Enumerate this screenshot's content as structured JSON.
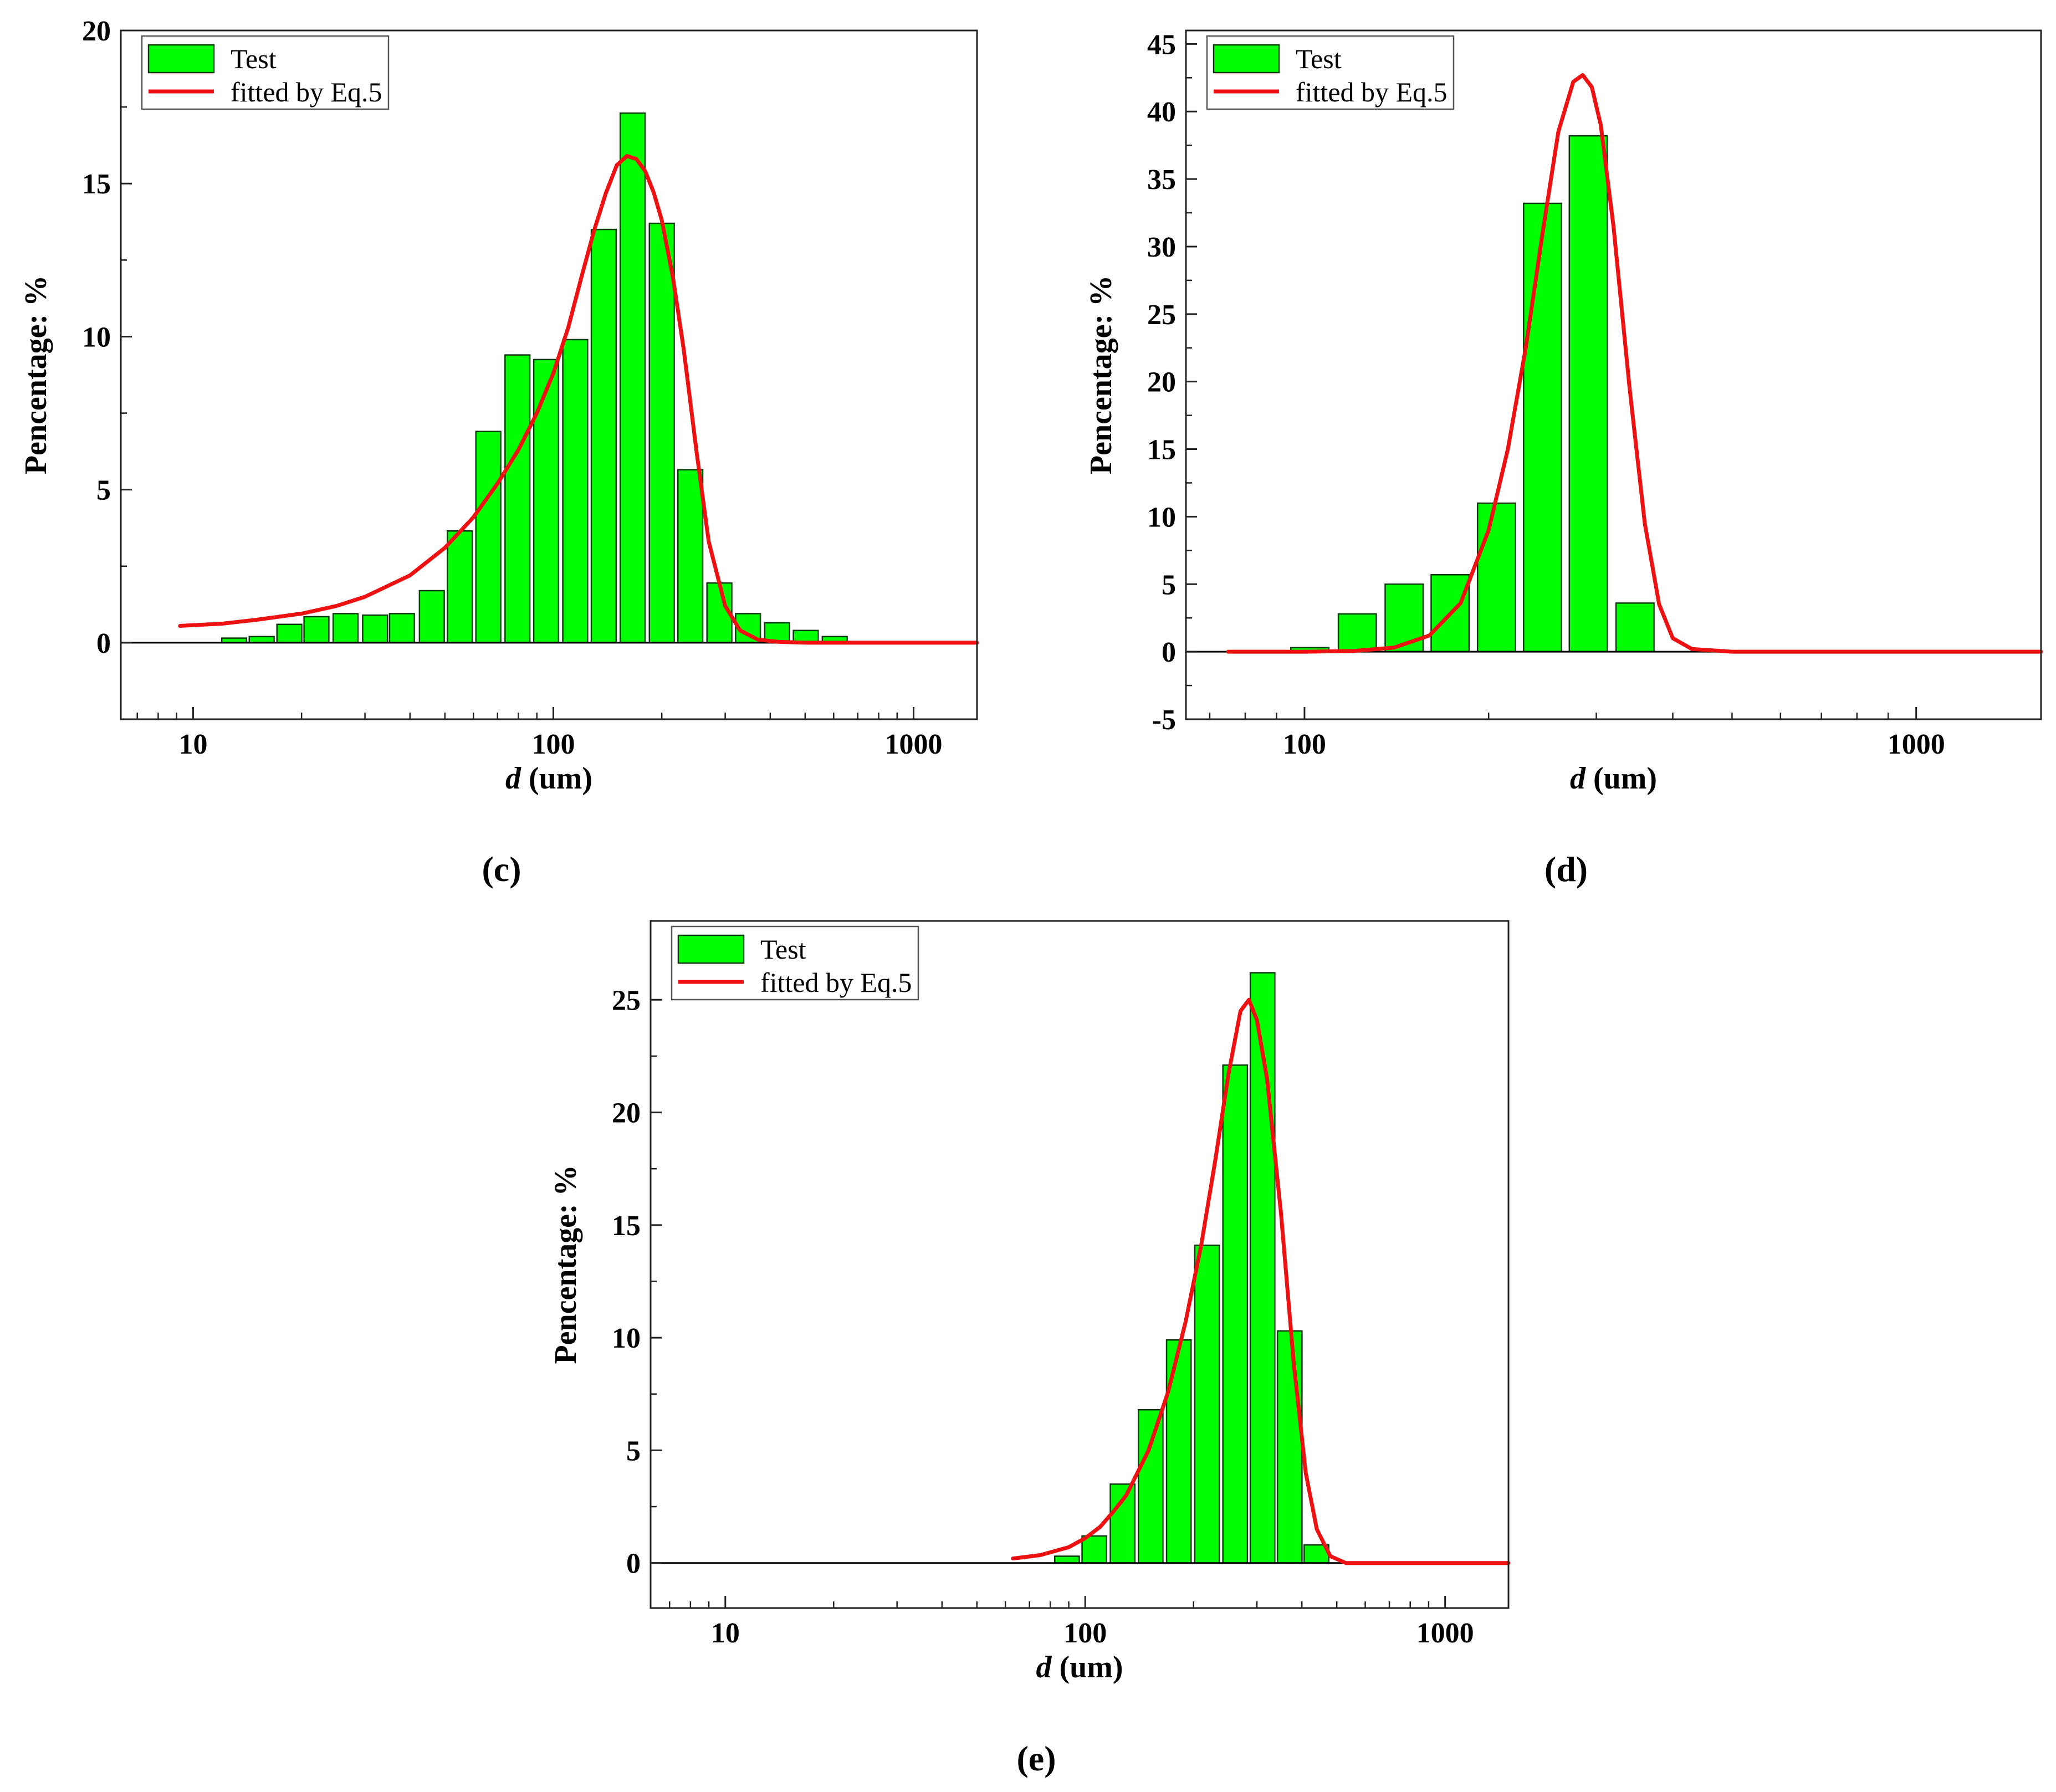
{
  "chart_data": [
    {
      "type": "bar",
      "panel_label": "(c)",
      "xlabel_var": "d",
      "xlabel_unit": " (um)",
      "ylabel": "Pencentage:   %",
      "xscale": "log",
      "xlim": [
        6.3,
        1500
      ],
      "ylim": [
        -2.5,
        20
      ],
      "yticks": [
        0,
        5,
        10,
        15,
        20
      ],
      "xticks": [
        10,
        100,
        1000
      ],
      "legend": {
        "position": "top-left",
        "bar_label": "Test",
        "line_label": "fitted by Eq.5"
      },
      "bar_ratio": 1.205,
      "bar_width_frac": 0.85,
      "bars": [
        {
          "x": 13.0,
          "y": 0.15
        },
        {
          "x": 15.5,
          "y": 0.2
        },
        {
          "x": 18.5,
          "y": 0.6
        },
        {
          "x": 22.0,
          "y": 0.85
        },
        {
          "x": 26.5,
          "y": 0.95
        },
        {
          "x": 32.0,
          "y": 0.9
        },
        {
          "x": 38.0,
          "y": 0.95
        },
        {
          "x": 46.0,
          "y": 1.7
        },
        {
          "x": 55.0,
          "y": 3.65
        },
        {
          "x": 66.0,
          "y": 6.9
        },
        {
          "x": 79.5,
          "y": 9.4
        },
        {
          "x": 95.5,
          "y": 9.25
        },
        {
          "x": 115.0,
          "y": 9.9
        },
        {
          "x": 138.0,
          "y": 13.5
        },
        {
          "x": 166.0,
          "y": 17.3
        },
        {
          "x": 200.0,
          "y": 13.7
        },
        {
          "x": 240.0,
          "y": 5.65
        },
        {
          "x": 289.0,
          "y": 1.95
        },
        {
          "x": 347.0,
          "y": 0.95
        },
        {
          "x": 418.0,
          "y": 0.65
        },
        {
          "x": 502.0,
          "y": 0.4
        },
        {
          "x": 604.0,
          "y": 0.2
        }
      ],
      "fit": {
        "x": [
          9.2,
          12,
          15,
          20,
          25,
          30,
          40,
          50,
          60,
          70,
          80,
          90,
          100,
          110,
          120,
          130,
          140,
          150,
          160,
          170,
          180,
          190,
          200,
          215,
          230,
          250,
          270,
          300,
          330,
          370,
          420,
          500,
          700,
          1000,
          1500
        ],
        "y": [
          0.55,
          0.62,
          0.75,
          0.95,
          1.2,
          1.5,
          2.2,
          3.1,
          4.1,
          5.2,
          6.3,
          7.5,
          8.8,
          10.3,
          12.0,
          13.5,
          14.7,
          15.6,
          15.9,
          15.8,
          15.4,
          14.7,
          13.8,
          11.9,
          9.6,
          6.2,
          3.3,
          1.2,
          0.4,
          0.1,
          0.03,
          0.0,
          0.0,
          0.0,
          0.0
        ]
      }
    },
    {
      "type": "bar",
      "panel_label": "(d)",
      "xlabel_var": "d",
      "xlabel_unit": " (um)",
      "ylabel": "Pencentage:   %",
      "xscale": "log",
      "xlim": [
        64,
        1600
      ],
      "ylim": [
        -5,
        46
      ],
      "yticks": [
        -5,
        0,
        5,
        10,
        15,
        20,
        25,
        30,
        35,
        40,
        45
      ],
      "xticks": [
        100,
        1000
      ],
      "legend": {
        "position": "top-left",
        "bar_label": "Test",
        "line_label": "fitted by Eq.5"
      },
      "bar_ratio": 1.19,
      "bar_width_frac": 0.82,
      "bars": [
        {
          "x": 102.0,
          "y": 0.3
        },
        {
          "x": 122.0,
          "y": 2.8
        },
        {
          "x": 145.5,
          "y": 5.0
        },
        {
          "x": 173.0,
          "y": 5.7
        },
        {
          "x": 206.0,
          "y": 11.0
        },
        {
          "x": 245.0,
          "y": 33.2
        },
        {
          "x": 291.0,
          "y": 38.2
        },
        {
          "x": 347.0,
          "y": 3.6
        }
      ],
      "fit": {
        "x": [
          75,
          100,
          120,
          140,
          160,
          180,
          200,
          215,
          230,
          245,
          260,
          275,
          285,
          295,
          305,
          320,
          340,
          360,
          380,
          400,
          430,
          500,
          700,
          1000,
          1600
        ],
        "y": [
          0.0,
          0.0,
          0.05,
          0.3,
          1.2,
          3.6,
          9.0,
          15.0,
          22.5,
          31.0,
          38.5,
          42.2,
          42.7,
          41.8,
          39.0,
          31.5,
          19.5,
          9.5,
          3.5,
          1.0,
          0.2,
          0.0,
          0.0,
          0.0,
          0.0
        ]
      }
    },
    {
      "type": "bar",
      "panel_label": "(e)",
      "xlabel_var": "d",
      "xlabel_unit": " (um)",
      "ylabel": "Pencentage:   %",
      "xscale": "log",
      "xlim": [
        6.2,
        1500
      ],
      "ylim": [
        -2,
        28.5
      ],
      "yticks": [
        0,
        5,
        10,
        15,
        20,
        25
      ],
      "xticks": [
        10,
        100,
        1000
      ],
      "legend": {
        "position": "top-left",
        "bar_label": "Test",
        "line_label": "fitted by Eq.5"
      },
      "bar_ratio": 1.2,
      "bar_width_frac": 0.86,
      "bars": [
        {
          "x": 89.0,
          "y": 0.3
        },
        {
          "x": 106.0,
          "y": 1.2
        },
        {
          "x": 127.0,
          "y": 3.5
        },
        {
          "x": 152.0,
          "y": 6.8
        },
        {
          "x": 182.0,
          "y": 9.9
        },
        {
          "x": 218.0,
          "y": 14.1
        },
        {
          "x": 261.0,
          "y": 22.1
        },
        {
          "x": 311.0,
          "y": 26.2
        },
        {
          "x": 370.0,
          "y": 10.3
        },
        {
          "x": 439.0,
          "y": 0.8
        }
      ],
      "fit": {
        "x": [
          63,
          75,
          90,
          100,
          110,
          120,
          130,
          150,
          170,
          190,
          210,
          230,
          250,
          270,
          285,
          300,
          320,
          350,
          380,
          410,
          440,
          480,
          530,
          700,
          1000,
          1500
        ],
        "y": [
          0.2,
          0.35,
          0.7,
          1.1,
          1.6,
          2.3,
          3.0,
          5.0,
          7.6,
          10.7,
          14.1,
          17.9,
          21.7,
          24.5,
          25.0,
          24.1,
          21.5,
          15.5,
          8.8,
          4.0,
          1.5,
          0.3,
          0.0,
          0.0,
          0.0,
          0.0
        ]
      }
    }
  ],
  "colors": {
    "bar_fill": "#00ff00",
    "bar_stroke": "#0a3a0a",
    "fit_line": "#ee1111",
    "axis": "#222222"
  }
}
